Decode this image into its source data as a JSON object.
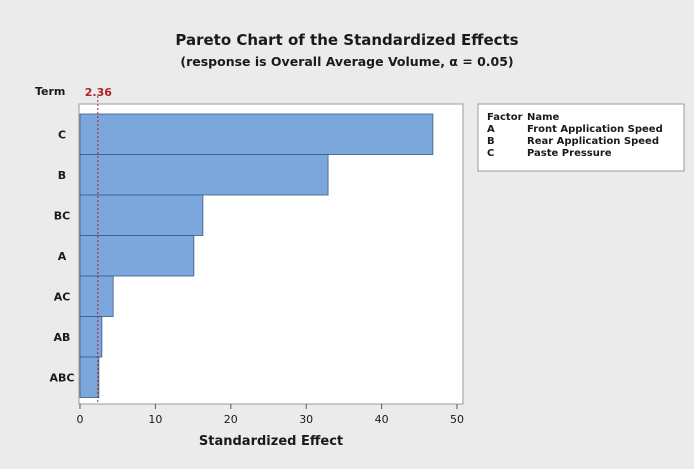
{
  "title": "Pareto Chart of the Standardized Effects",
  "subtitle": "(response is Overall Average Volume, α = 0.05)",
  "colors": {
    "background": "#ebebeb",
    "plot_area": "#ffffff",
    "bar_fill": "#7ba7dd",
    "bar_stroke": "#3c5a85",
    "reference_line": "#b22222"
  },
  "legend": {
    "header_factor": "Factor",
    "header_name": "Name",
    "rows": [
      {
        "factor": "A",
        "name": "Front Application Speed"
      },
      {
        "factor": "B",
        "name": "Rear Application Speed"
      },
      {
        "factor": "C",
        "name": "Paste Pressure"
      }
    ]
  },
  "chart_data": {
    "type": "bar",
    "orientation": "horizontal",
    "ylabel": "Term",
    "xlabel": "Standardized Effect",
    "categories": [
      "C",
      "B",
      "BC",
      "A",
      "AC",
      "AB",
      "ABC"
    ],
    "values": [
      46.8,
      32.9,
      16.3,
      15.1,
      4.4,
      2.9,
      2.5
    ],
    "xlim": [
      0,
      50
    ],
    "xticks": [
      0,
      10,
      20,
      30,
      40,
      50
    ],
    "reference_value": 2.36,
    "reference_label": "2.36",
    "grid": false,
    "legend_position": "right"
  }
}
